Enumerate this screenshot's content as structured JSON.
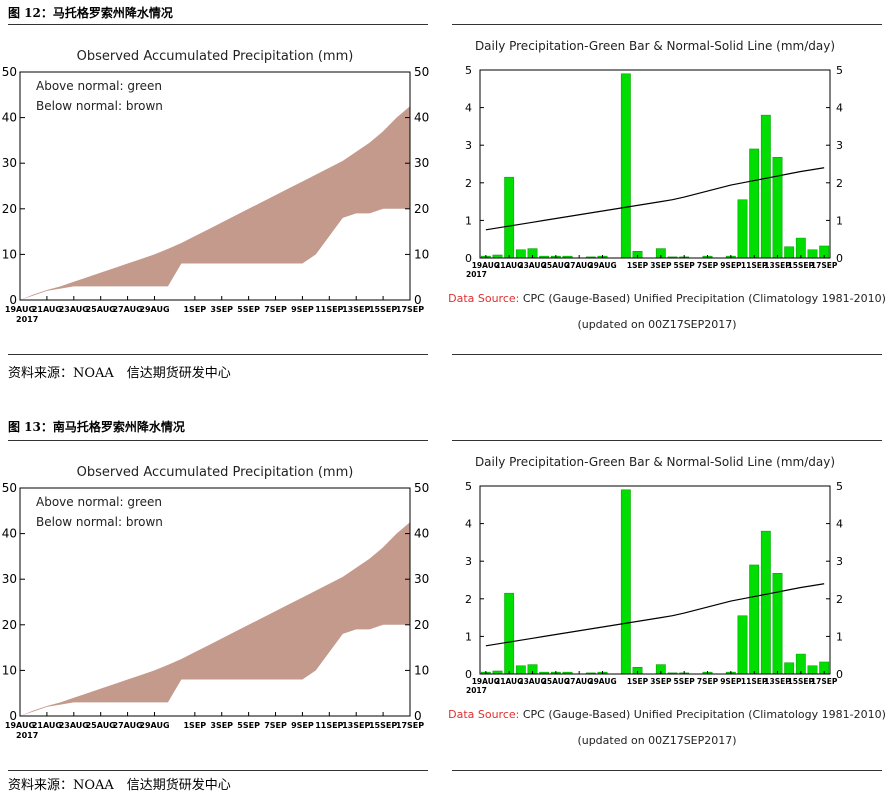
{
  "figures": [
    {
      "title": "图 12：马托格罗索州降水情况",
      "source": "资料来源：NOAA　信达期货研发中心"
    },
    {
      "title": "图 13：南马托格罗索州降水情况",
      "source": "资料来源：NOAA　信达期货研发中心"
    }
  ],
  "colors": {
    "accum_fill": "#c49a8c",
    "bar_fill": "#00dd00",
    "bar_stroke": "#009900",
    "normal_line": "#000000",
    "source_red": "#e03030"
  },
  "chart_data": [
    {
      "type": "area",
      "title": "Observed Accumulated Precipitation (mm)",
      "legend": [
        "Above normal: green",
        "Below normal: brown"
      ],
      "legend_position": "top-left",
      "ylim": [
        0,
        50
      ],
      "yticks": [
        0,
        10,
        20,
        30,
        40,
        50
      ],
      "xlim": [
        0,
        29
      ],
      "x_tick_labels": [
        "19AUG",
        "21AUG",
        "23AUG",
        "25AUG",
        "27AUG",
        "29AUG",
        "1SEP",
        "3SEP",
        "5SEP",
        "7SEP",
        "9SEP",
        "11SEP",
        "13SEP",
        "15SEP",
        "17SEP"
      ],
      "x_tick_positions": [
        0,
        2,
        4,
        6,
        8,
        10,
        13,
        15,
        17,
        19,
        21,
        23,
        25,
        27,
        29
      ],
      "year_label": "2017",
      "observed": {
        "x": [
          0,
          1,
          2,
          3,
          4,
          5,
          6,
          7,
          8,
          9,
          10,
          11,
          12,
          13,
          14,
          15,
          16,
          17,
          18,
          19,
          20,
          21,
          22,
          23,
          24,
          25,
          26,
          27,
          28,
          29
        ],
        "y": [
          0,
          1,
          2,
          2.5,
          3,
          3,
          3,
          3,
          3,
          3,
          3,
          3,
          8,
          8,
          8,
          8,
          8,
          8,
          8,
          8,
          8,
          8,
          10,
          14,
          18,
          19,
          19,
          20,
          20,
          20
        ]
      },
      "normal": {
        "x": [
          0,
          1,
          2,
          3,
          4,
          5,
          6,
          7,
          8,
          9,
          10,
          11,
          12,
          13,
          14,
          15,
          16,
          17,
          18,
          19,
          20,
          21,
          22,
          23,
          24,
          25,
          26,
          27,
          28,
          29
        ],
        "y": [
          0,
          1.2,
          2.2,
          3,
          4,
          5,
          6,
          7,
          8,
          9,
          10,
          11.2,
          12.5,
          14,
          15.5,
          17,
          18.5,
          20,
          21.5,
          23,
          24.5,
          26,
          27.5,
          29,
          30.5,
          32.5,
          34.5,
          37,
          40,
          42.5
        ]
      }
    },
    {
      "type": "bar",
      "title": "Daily Precipitation-Green Bar & Normal-Solid Line (mm/day)",
      "ylim": [
        0,
        5
      ],
      "yticks": [
        0,
        1,
        2,
        3,
        4,
        5
      ],
      "xlim": [
        -0.5,
        29.5
      ],
      "x_tick_labels": [
        "19AUG",
        "21AUG",
        "23AUG",
        "25AUG",
        "27AUG",
        "29AUG",
        "1SEP",
        "3SEP",
        "5SEP",
        "7SEP",
        "9SEP",
        "11SEP",
        "13SEP",
        "15SEP",
        "17SEP"
      ],
      "x_tick_positions": [
        0,
        2,
        4,
        6,
        8,
        10,
        13,
        15,
        17,
        19,
        21,
        23,
        25,
        27,
        29
      ],
      "year_label": "2017",
      "values": [
        0.05,
        0.08,
        2.15,
        0.22,
        0.25,
        0.05,
        0.05,
        0.05,
        0,
        0.03,
        0.05,
        0,
        4.9,
        0.18,
        0,
        0.25,
        0.03,
        0.03,
        0,
        0.05,
        0,
        0.05,
        1.55,
        2.9,
        3.8,
        2.68,
        0.3,
        0.53,
        0.22,
        0.32
      ],
      "normal_line": {
        "x": [
          0,
          29
        ],
        "y": [
          0.75,
          2.4
        ],
        "curve": [
          0.75,
          0.8,
          0.85,
          0.9,
          0.95,
          1.0,
          1.05,
          1.1,
          1.15,
          1.2,
          1.25,
          1.3,
          1.35,
          1.4,
          1.45,
          1.5,
          1.55,
          1.62,
          1.7,
          1.78,
          1.86,
          1.94,
          2.0,
          2.06,
          2.12,
          2.18,
          2.24,
          2.3,
          2.35,
          2.4
        ]
      },
      "data_source_label": "Data Source:",
      "data_source_text": "CPC (Gauge-Based) Unified Precipitation (Climatology 1981-2010)",
      "updated": "(updated on 00Z17SEP2017)"
    }
  ]
}
